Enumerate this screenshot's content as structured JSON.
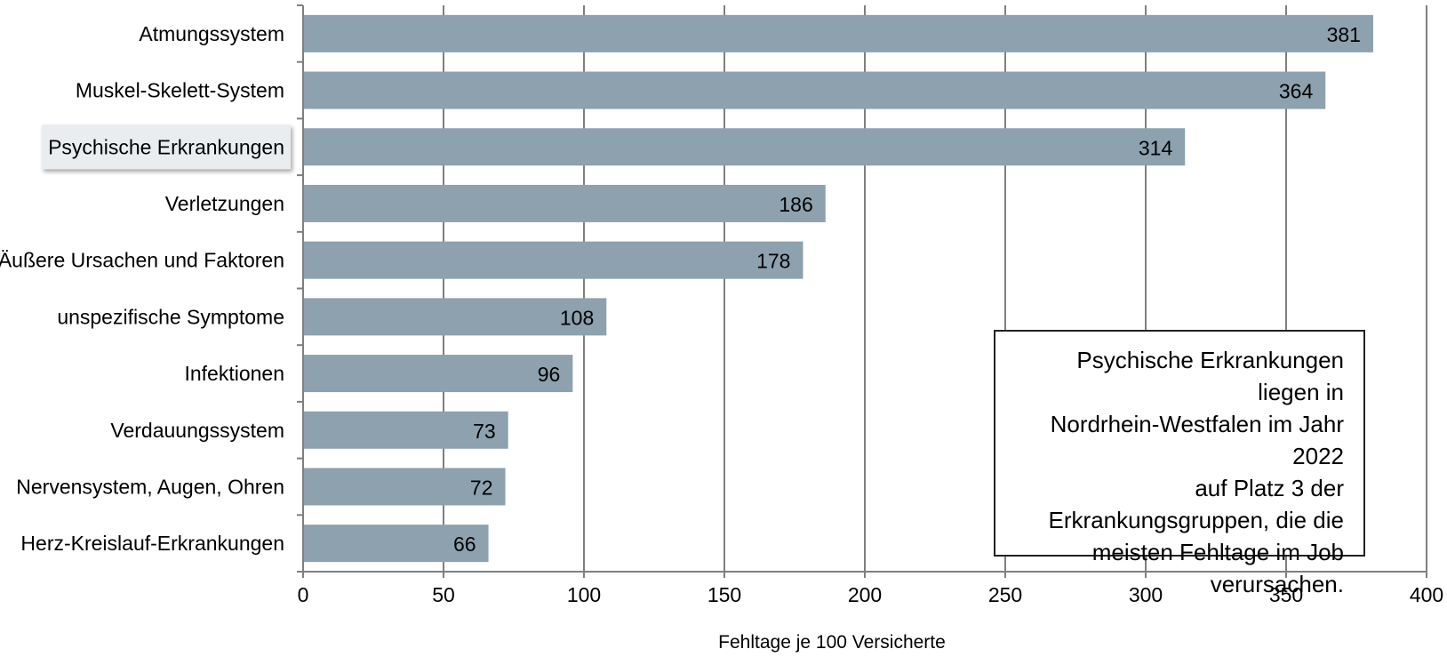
{
  "chart_data": {
    "type": "bar",
    "orientation": "horizontal",
    "categories": [
      "Atmungssystem",
      "Muskel-Skelett-System",
      "Psychische Erkrankungen",
      "Verletzungen",
      "Äußere Ursachen und Faktoren",
      "unspezifische Symptome",
      "Infektionen",
      "Verdauungssystem",
      "Nervensystem, Augen, Ohren",
      "Herz-Kreislauf-Erkrankungen"
    ],
    "values": [
      381,
      364,
      314,
      186,
      178,
      108,
      96,
      73,
      72,
      66
    ],
    "value_labels": [
      "381",
      "364",
      "314",
      "186",
      "178",
      "108",
      "96",
      "73",
      "72",
      "66"
    ],
    "highlighted_category": "Psychische Erkrankungen",
    "xlabel": "Fehltage je 100 Versicherte",
    "xlim": [
      0,
      400
    ],
    "xticks": [
      0,
      50,
      100,
      150,
      200,
      250,
      300,
      350,
      400
    ],
    "xtick_labels": [
      "0",
      "50",
      "100",
      "150",
      "200",
      "250",
      "300",
      "350",
      "400"
    ],
    "grid": "vertical",
    "bar_color": "#8da1ae",
    "grid_color": "#7f7f7f",
    "highlight_box_color": "#e9edf0",
    "annotation": "Psychische Erkrankungen liegen in\nNordrhein-Westfalen im Jahr 2022\nauf Platz 3 der\nErkrankungsgruppen, die die\nmeisten Fehltage im Job\nverursachen."
  }
}
